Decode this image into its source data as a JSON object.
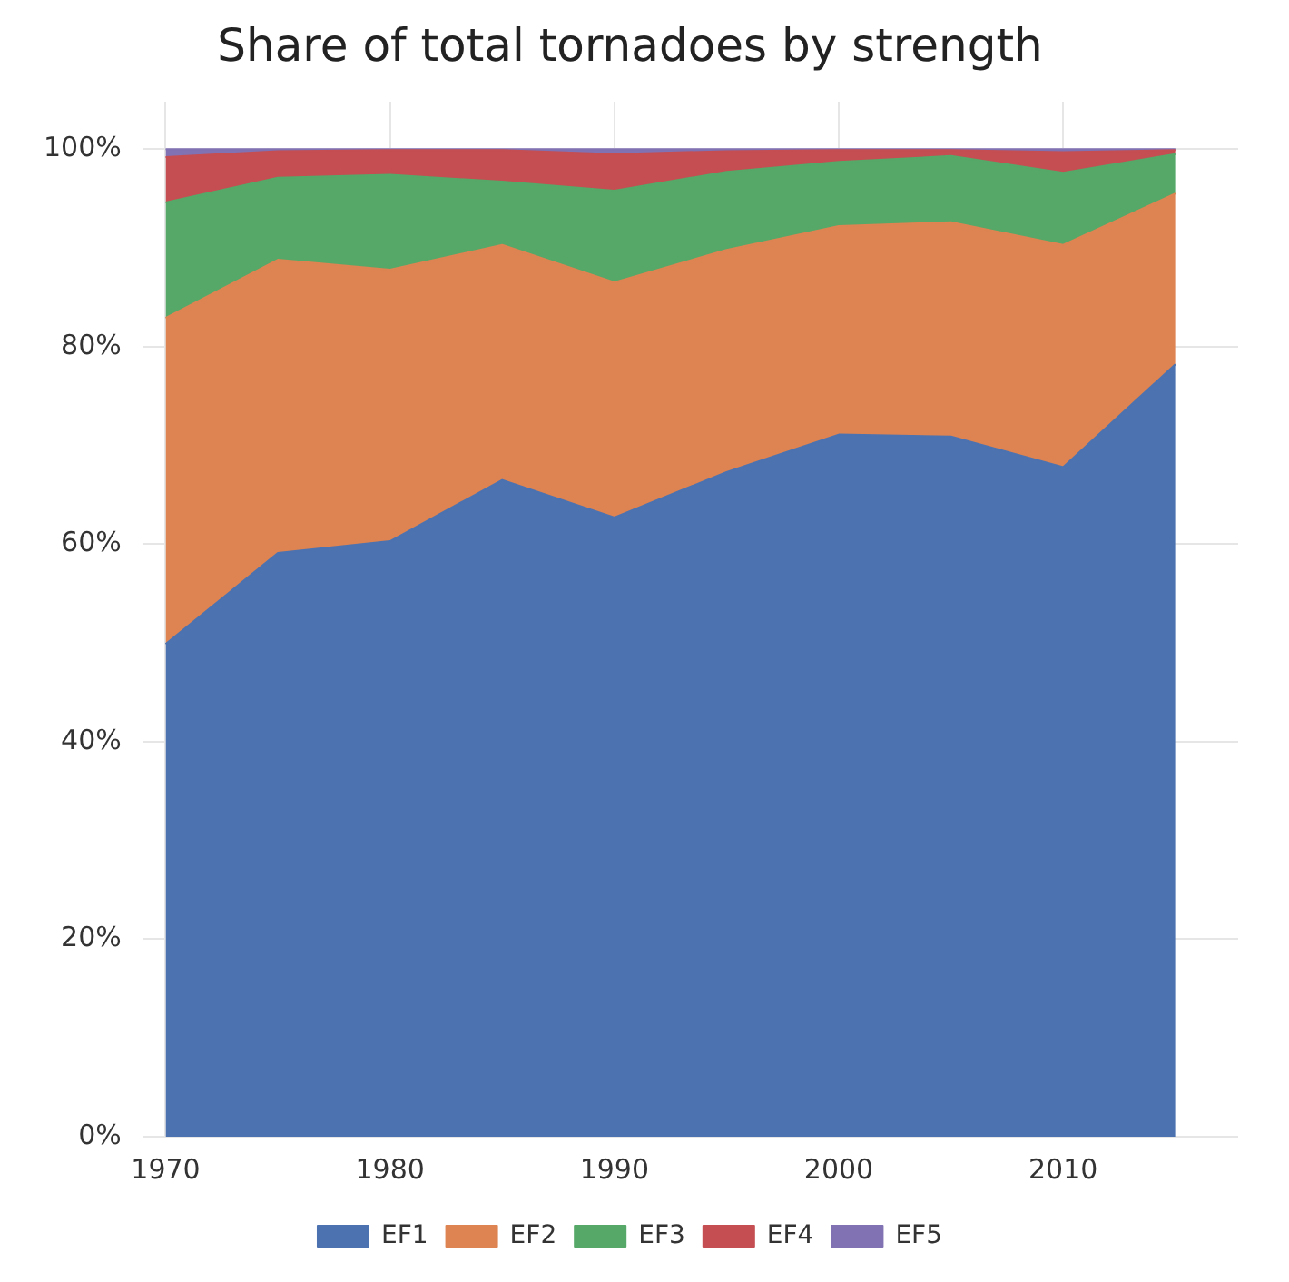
{
  "chart_data": {
    "type": "area",
    "title": "Share of total tornadoes by strength",
    "stacked": true,
    "x": [
      1970,
      1975,
      1980,
      1985,
      1990,
      1995,
      2000,
      2005,
      2010,
      2015
    ],
    "series": [
      {
        "name": "EF1",
        "color": "#4c72b0",
        "values": [
          49.9,
          59.1,
          60.3,
          66.5,
          62.7,
          67.3,
          71.1,
          70.9,
          67.8,
          78.2
        ]
      },
      {
        "name": "EF2",
        "color": "#dd8452",
        "values": [
          33.0,
          29.7,
          27.5,
          23.8,
          23.8,
          22.5,
          21.1,
          21.7,
          22.5,
          17.3
        ]
      },
      {
        "name": "EF3",
        "color": "#55a868",
        "values": [
          11.7,
          8.3,
          9.6,
          6.4,
          9.3,
          7.9,
          6.5,
          6.7,
          7.3,
          4.0
        ]
      },
      {
        "name": "EF4",
        "color": "#c44e52",
        "values": [
          4.6,
          2.7,
          2.5,
          3.2,
          3.7,
          2.1,
          1.2,
          0.6,
          2.1,
          0.4
        ]
      },
      {
        "name": "EF5",
        "color": "#8172b3",
        "values": [
          0.8,
          0.2,
          0.1,
          0.1,
          0.5,
          0.2,
          0.1,
          0.1,
          0.3,
          0.1
        ]
      }
    ],
    "xlim": [
      1969,
      2017.8
    ],
    "xticks": [
      1970,
      1980,
      1990,
      2000,
      2010
    ],
    "ylim": [
      0,
      104.8
    ],
    "yticks": [
      {
        "value": 0,
        "label": "0%"
      },
      {
        "value": 20,
        "label": "20%"
      },
      {
        "value": 40,
        "label": "40%"
      },
      {
        "value": 60,
        "label": "60%"
      },
      {
        "value": 80,
        "label": "80%"
      },
      {
        "value": 100,
        "label": "100%"
      }
    ],
    "grid": true,
    "legend": "bottom"
  }
}
